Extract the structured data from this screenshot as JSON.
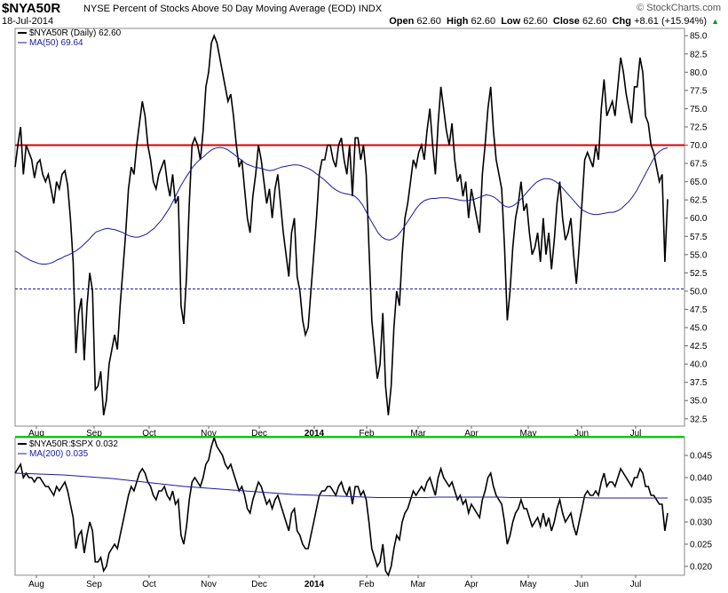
{
  "header": {
    "symbol": "$NYA50R",
    "description": "NYSE Percent of Stocks Above 50 Day Moving Average (EOD)  INDX",
    "date": "18-Jul-2014",
    "source": "© StockCharts.com",
    "quotes": [
      {
        "label": "Open",
        "value": "62.60"
      },
      {
        "label": "High",
        "value": "62.60"
      },
      {
        "label": "Low",
        "value": "62.60"
      },
      {
        "label": "Close",
        "value": "62.60"
      },
      {
        "label": "Chg",
        "value": "+8.61 (+15.94%)"
      }
    ],
    "change_arrow": "▲"
  },
  "colors": {
    "price": "#000000",
    "ma": "#1a1aa0",
    "hline70": "#dd0000",
    "hline50": "#1a1aa0",
    "divider": "#00cc00",
    "up": "#00a000"
  },
  "chart_data": [
    {
      "type": "line",
      "legend": [
        "$NYA50R (Daily) 62.60",
        "MA(50) 69.64"
      ],
      "ylim": [
        31.5,
        86
      ],
      "yticks": [
        "85.0",
        "82.5",
        "80.0",
        "77.5",
        "75.0",
        "72.5",
        "70.0",
        "67.5",
        "65.0",
        "62.5",
        "60.0",
        "57.5",
        "55.0",
        "52.5",
        "50.0",
        "47.5",
        "45.0",
        "42.5",
        "40.0",
        "37.5",
        "35.0",
        "32.5"
      ],
      "xticks": [
        "Aug",
        "Sep",
        "Oct",
        "Nov",
        "Dec",
        "2014",
        "Feb",
        "Mar",
        "Apr",
        "May",
        "Jun",
        "Jul"
      ],
      "reference_lines": [
        70,
        50.3
      ],
      "series": [
        {
          "name": "$NYA50R (Daily)",
          "values": [
            67,
            70,
            72.5,
            66,
            70,
            69,
            68,
            65.5,
            67.5,
            68,
            66,
            65,
            66,
            64,
            62,
            65,
            64,
            66,
            66.5,
            64.5,
            60,
            54,
            41.5,
            47,
            49,
            40.5,
            48,
            52.5,
            50,
            36.5,
            37,
            39,
            33,
            35,
            40,
            42,
            44,
            42,
            48,
            53,
            58,
            64,
            67,
            66,
            70,
            73,
            76,
            74,
            70,
            68,
            65,
            64,
            66,
            67,
            68,
            65,
            63,
            66,
            62,
            63,
            48,
            45.5,
            52,
            62,
            70,
            71,
            70,
            68,
            72,
            78,
            80,
            84,
            85,
            84,
            82,
            80,
            78,
            76,
            77,
            74,
            70,
            67,
            68,
            64,
            60,
            58,
            63,
            66,
            70,
            68,
            65,
            62,
            64,
            60,
            64,
            66,
            62,
            58,
            55,
            52,
            58,
            60,
            52,
            50,
            46,
            44,
            45,
            50,
            55,
            60,
            66,
            68,
            68,
            70,
            70,
            68,
            67,
            70,
            71,
            68,
            66,
            70,
            63,
            71,
            71,
            68,
            70,
            66,
            56,
            46,
            42,
            38,
            40,
            47,
            37,
            33,
            37,
            45,
            50,
            48,
            55,
            60,
            62,
            65,
            68,
            67,
            69,
            70,
            68,
            72,
            75,
            70,
            66,
            73,
            78,
            75,
            72,
            70,
            73,
            68,
            65,
            66,
            63,
            65,
            60,
            64,
            62,
            60,
            58,
            66,
            70,
            75,
            78,
            72,
            68,
            66,
            64,
            56,
            46,
            50,
            56,
            60,
            62,
            65,
            61,
            62,
            58,
            55,
            56,
            58,
            54,
            60,
            55,
            58,
            53,
            57,
            62,
            65,
            60,
            57,
            58,
            60,
            55,
            51,
            56,
            62,
            68,
            69,
            68,
            67,
            70,
            68,
            75,
            79,
            74,
            75,
            76,
            74,
            78,
            82,
            80,
            77,
            75,
            73,
            78,
            78,
            82,
            80,
            74,
            73,
            70,
            69,
            67,
            65,
            66,
            54,
            62.6
          ]
        },
        {
          "name": "MA(50)",
          "values": [
            55.5,
            55.2,
            54.8,
            54.5,
            54.2,
            54.0,
            53.8,
            53.7,
            53.7,
            53.8,
            54.0,
            54.3,
            54.5,
            54.8,
            55.0,
            55.3,
            55.6,
            56.0,
            56.5,
            57.0,
            57.6,
            58.1,
            58.3,
            58.5,
            58.6,
            58.5,
            58.4,
            58.2,
            58.0,
            57.7,
            57.5,
            57.4,
            57.4,
            57.6,
            57.8,
            58.2,
            58.6,
            59.2,
            59.8,
            60.6,
            61.4,
            62.4,
            63.5,
            64.5,
            65.4,
            66.2,
            67.0,
            67.6,
            68.1,
            68.5,
            69.0,
            69.4,
            69.6,
            69.7,
            69.6,
            69.4,
            69.0,
            68.6,
            68.2,
            67.8,
            67.4,
            67.2,
            67.0,
            66.9,
            66.8,
            66.6,
            66.5,
            66.6,
            66.8,
            67.0,
            67.1,
            67.2,
            67.3,
            67.3,
            67.2,
            67.0,
            66.8,
            66.5,
            66.1,
            65.7,
            65.3,
            64.8,
            64.3,
            63.9,
            63.6,
            63.4,
            63.3,
            63.2,
            63.0,
            62.5,
            61.8,
            60.8,
            59.8,
            58.9,
            58.0,
            57.4,
            57.1,
            57.0,
            57.2,
            57.6,
            58.2,
            59.0,
            59.8,
            60.6,
            61.4,
            62.0,
            62.4,
            62.6,
            62.7,
            62.7,
            62.8,
            62.8,
            62.8,
            62.7,
            62.6,
            62.5,
            62.4,
            62.4,
            62.5,
            62.6,
            62.8,
            63.0,
            63.2,
            63.1,
            62.9,
            62.5,
            62.0,
            61.6,
            61.5,
            61.7,
            62.1,
            62.6,
            63.2,
            63.8,
            64.4,
            64.9,
            65.2,
            65.4,
            65.4,
            65.3,
            65.0,
            64.6,
            64.0,
            63.4,
            62.8,
            62.2,
            61.6,
            61.1,
            60.8,
            60.6,
            60.5,
            60.5,
            60.6,
            60.7,
            60.8,
            60.8,
            61.0,
            61.3,
            61.8,
            62.3,
            63.0,
            63.8,
            64.8,
            65.8,
            66.8,
            67.8,
            68.7,
            69.2,
            69.5,
            69.64
          ]
        }
      ]
    },
    {
      "type": "line",
      "legend": [
        "$NYA50R:$SPX 0.032",
        "MA(200) 0.035"
      ],
      "ylim": [
        0.018,
        0.049
      ],
      "yticks": [
        "0.045",
        "0.040",
        "0.035",
        "0.030",
        "0.025",
        "0.020"
      ],
      "xticks": [
        "Aug",
        "Sep",
        "Oct",
        "Nov",
        "Dec",
        "2014",
        "Feb",
        "Mar",
        "Apr",
        "May",
        "Jun",
        "Jul"
      ],
      "series": [
        {
          "name": "$NYA50R:$SPX",
          "values": [
            0.041,
            0.042,
            0.043,
            0.04,
            0.041,
            0.04,
            0.04,
            0.039,
            0.04,
            0.04,
            0.039,
            0.038,
            0.038,
            0.037,
            0.036,
            0.038,
            0.037,
            0.038,
            0.039,
            0.037,
            0.034,
            0.031,
            0.024,
            0.027,
            0.028,
            0.023,
            0.027,
            0.03,
            0.028,
            0.021,
            0.021,
            0.022,
            0.019,
            0.02,
            0.023,
            0.024,
            0.025,
            0.024,
            0.027,
            0.03,
            0.033,
            0.036,
            0.038,
            0.037,
            0.039,
            0.041,
            0.042,
            0.041,
            0.039,
            0.038,
            0.036,
            0.035,
            0.037,
            0.037,
            0.038,
            0.036,
            0.035,
            0.037,
            0.034,
            0.035,
            0.027,
            0.025,
            0.029,
            0.035,
            0.039,
            0.04,
            0.039,
            0.038,
            0.04,
            0.043,
            0.044,
            0.047,
            0.049,
            0.047,
            0.046,
            0.045,
            0.043,
            0.042,
            0.043,
            0.041,
            0.039,
            0.037,
            0.038,
            0.036,
            0.033,
            0.032,
            0.035,
            0.037,
            0.039,
            0.038,
            0.036,
            0.034,
            0.035,
            0.033,
            0.035,
            0.036,
            0.034,
            0.032,
            0.03,
            0.028,
            0.032,
            0.033,
            0.028,
            0.027,
            0.025,
            0.024,
            0.024,
            0.027,
            0.03,
            0.033,
            0.036,
            0.037,
            0.037,
            0.038,
            0.038,
            0.037,
            0.036,
            0.038,
            0.039,
            0.037,
            0.036,
            0.038,
            0.034,
            0.038,
            0.038,
            0.036,
            0.037,
            0.035,
            0.03,
            0.024,
            0.022,
            0.02,
            0.021,
            0.025,
            0.019,
            0.018,
            0.02,
            0.024,
            0.027,
            0.026,
            0.03,
            0.032,
            0.033,
            0.035,
            0.037,
            0.036,
            0.037,
            0.038,
            0.037,
            0.039,
            0.04,
            0.038,
            0.036,
            0.04,
            0.042,
            0.04,
            0.039,
            0.038,
            0.039,
            0.037,
            0.035,
            0.036,
            0.034,
            0.035,
            0.032,
            0.034,
            0.033,
            0.032,
            0.031,
            0.035,
            0.037,
            0.04,
            0.041,
            0.038,
            0.036,
            0.035,
            0.034,
            0.03,
            0.025,
            0.027,
            0.03,
            0.032,
            0.033,
            0.035,
            0.033,
            0.033,
            0.031,
            0.029,
            0.03,
            0.031,
            0.029,
            0.032,
            0.029,
            0.031,
            0.028,
            0.03,
            0.033,
            0.035,
            0.032,
            0.03,
            0.031,
            0.032,
            0.029,
            0.027,
            0.03,
            0.033,
            0.036,
            0.037,
            0.036,
            0.036,
            0.037,
            0.036,
            0.039,
            0.041,
            0.038,
            0.039,
            0.039,
            0.038,
            0.04,
            0.042,
            0.041,
            0.04,
            0.039,
            0.038,
            0.04,
            0.04,
            0.042,
            0.041,
            0.038,
            0.038,
            0.036,
            0.036,
            0.035,
            0.034,
            0.034,
            0.028,
            0.032
          ]
        },
        {
          "name": "MA(200)",
          "values": [
            0.041,
            0.0409,
            0.0408,
            0.0407,
            0.0406,
            0.0404,
            0.0402,
            0.04,
            0.0398,
            0.0395,
            0.0392,
            0.0389,
            0.0386,
            0.0383,
            0.038,
            0.0378,
            0.0376,
            0.0374,
            0.0372,
            0.037,
            0.0368,
            0.0366,
            0.0364,
            0.0362,
            0.0361,
            0.036,
            0.0359,
            0.0358,
            0.0357,
            0.0356,
            0.0355,
            0.0355,
            0.0355,
            0.0355,
            0.0355,
            0.0356,
            0.0356,
            0.0356,
            0.0356,
            0.0356,
            0.0356,
            0.0355,
            0.0355,
            0.0355,
            0.0355,
            0.0355,
            0.0355,
            0.0355,
            0.0354,
            0.0354,
            0.0354,
            0.0354,
            0.0354,
            0.0354,
            0.0354
          ]
        }
      ]
    }
  ]
}
